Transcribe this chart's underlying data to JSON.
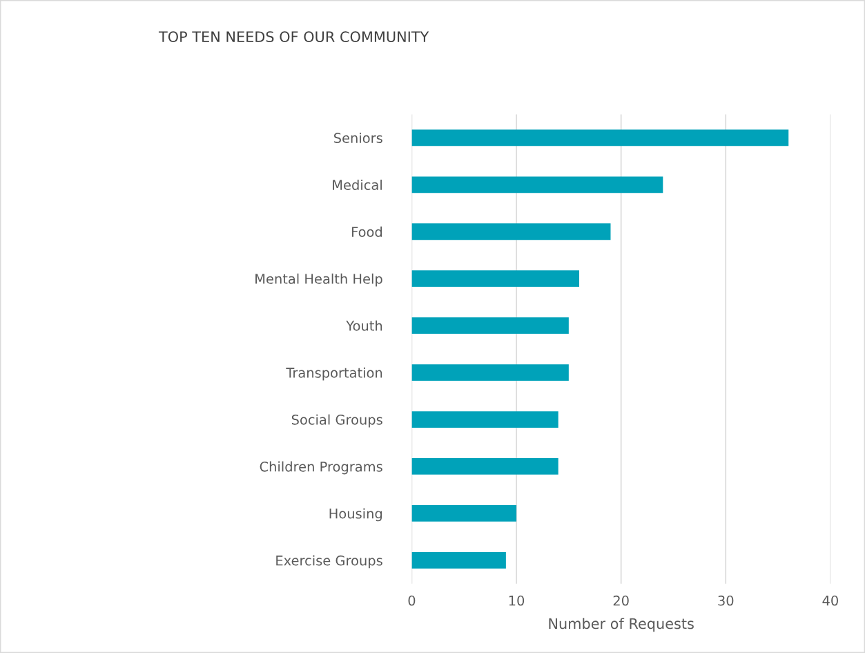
{
  "chart_data": {
    "type": "bar",
    "orientation": "horizontal",
    "title": "TOP TEN NEEDS OF OUR COMMUNITY",
    "xlabel": "Number of Requests",
    "categories": [
      "Seniors",
      "Medical",
      "Food",
      "Mental Health Help",
      "Youth",
      "Transportation",
      "Social Groups",
      "Children Programs",
      "Housing",
      "Exercise Groups"
    ],
    "values": [
      36,
      24,
      19,
      16,
      15,
      15,
      14,
      14,
      10,
      9
    ],
    "color": "#00a2b9",
    "xlim": [
      0,
      40
    ],
    "xticks": [
      0,
      10,
      20,
      30,
      40
    ],
    "grid": "x"
  }
}
